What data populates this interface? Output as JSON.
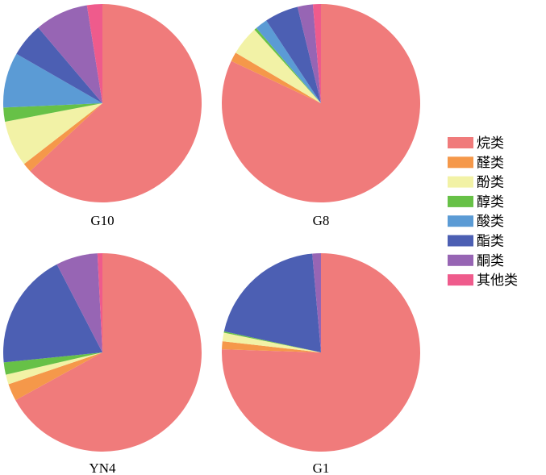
{
  "chart_data": {
    "type": "pie",
    "legend": {
      "position": "right",
      "entries": [
        {
          "name": "烷类",
          "color": "#f07b7b"
        },
        {
          "name": "醛类",
          "color": "#f5984a"
        },
        {
          "name": "酚类",
          "color": "#f2f2a6"
        },
        {
          "name": "醇类",
          "color": "#67c147"
        },
        {
          "name": "酸类",
          "color": "#5b9bd5"
        },
        {
          "name": "酯类",
          "color": "#4c5fb3"
        },
        {
          "name": "酮类",
          "color": "#9765b4"
        },
        {
          "name": "其他类",
          "color": "#ef5b8c"
        }
      ]
    },
    "start_angle_deg": 0,
    "direction": "clockwise",
    "pies": [
      {
        "label": "G10",
        "values": [
          63.0,
          1.5,
          7.5,
          2.3,
          9.0,
          5.5,
          8.7,
          2.5
        ]
      },
      {
        "label": "G8",
        "values": [
          82.0,
          1.5,
          4.8,
          0.4,
          2.0,
          5.5,
          2.5,
          1.3
        ]
      },
      {
        "label": "YN4",
        "values": [
          67.0,
          2.8,
          1.6,
          2.0,
          0.0,
          19.0,
          6.8,
          0.8
        ]
      },
      {
        "label": "G1",
        "values": [
          75.5,
          1.3,
          1.4,
          0.2,
          0.0,
          20.2,
          1.4,
          0.0
        ]
      }
    ]
  }
}
